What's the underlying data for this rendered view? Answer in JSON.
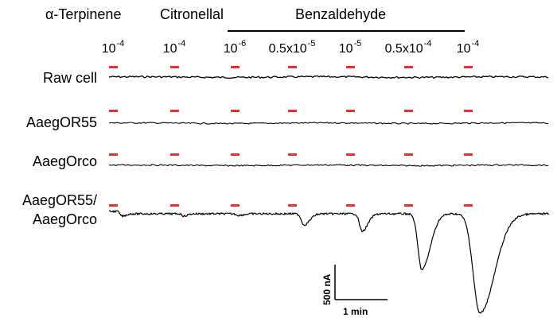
{
  "headers": {
    "alpha_terpinene": "α-Terpinene",
    "citronellal": "Citronellal",
    "benzaldehyde": "Benzaldehyde"
  },
  "concentrations": [
    {
      "mantissa": "10",
      "exponent": "-4"
    },
    {
      "mantissa": "10",
      "exponent": "-4"
    },
    {
      "mantissa": "10",
      "exponent": "-6"
    },
    {
      "mantissa": "0.5x10",
      "exponent": "-5"
    },
    {
      "mantissa": "10",
      "exponent": "-5"
    },
    {
      "mantissa": "0.5x10",
      "exponent": "-4"
    },
    {
      "mantissa": "10",
      "exponent": "-4"
    }
  ],
  "rows": [
    {
      "label": "Raw cell"
    },
    {
      "label": "AaegOR55"
    },
    {
      "label": "AaegOrco"
    },
    {
      "label_line1": "AaegOR55/",
      "label_line2": "AaegOrco"
    }
  ],
  "scale_bar": {
    "current": "500 nA",
    "time": "1 min"
  },
  "colors": {
    "stimulus_bar": "#e8302a",
    "trace": "#000000"
  }
}
